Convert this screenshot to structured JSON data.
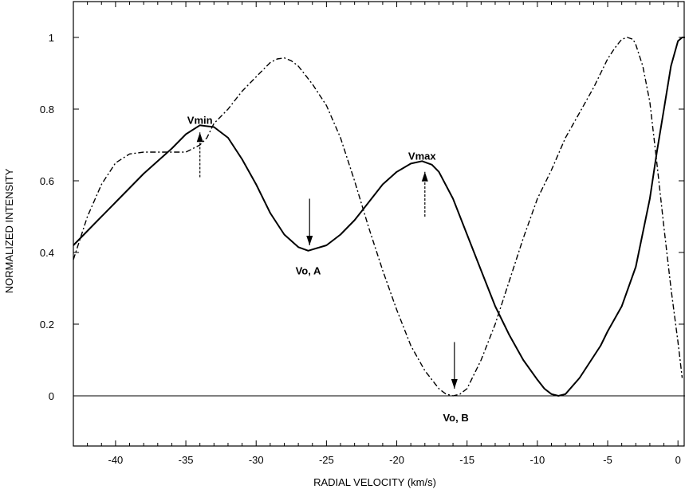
{
  "chart_data": {
    "type": "line",
    "title": "",
    "xlabel": "RADIAL VELOCITY (km/s)",
    "ylabel": "NORMALIZED INTENSITY",
    "xlim": [
      -43,
      0.5
    ],
    "ylim": [
      -0.14,
      1.1
    ],
    "xticks": [
      -40,
      -35,
      -30,
      -25,
      -20,
      -15,
      -10,
      -5,
      0
    ],
    "xtick_labels": [
      "-40",
      "-35",
      "-30",
      "-25",
      "-20",
      "-15",
      "-10",
      "-5",
      "0"
    ],
    "yticks": [
      0,
      0.2,
      0.4,
      0.6,
      0.8,
      1
    ],
    "ytick_labels": [
      "0",
      "0.2",
      "0.4",
      "0.6",
      "0.8",
      "1"
    ],
    "grid": false,
    "zero_line": true,
    "series": [
      {
        "style": "solid",
        "x": [
          -43,
          -42,
          -40,
          -38,
          -36,
          -35,
          -34,
          -33,
          -32,
          -31,
          -30,
          -29,
          -28,
          -27,
          -26.3,
          -25,
          -24,
          -23,
          -22,
          -21,
          -20,
          -19,
          -18.2,
          -17.5,
          -17,
          -16,
          -15,
          -14,
          -13,
          -12,
          -11,
          -10,
          -9.5,
          -9,
          -8.5,
          -8,
          -7,
          -6,
          -5.5,
          -5,
          -4,
          -3,
          -2,
          -1.5,
          -1,
          -0.5,
          0,
          0.3,
          0.5
        ],
        "y": [
          0.42,
          0.46,
          0.54,
          0.62,
          0.69,
          0.73,
          0.755,
          0.75,
          0.72,
          0.66,
          0.59,
          0.51,
          0.45,
          0.415,
          0.405,
          0.42,
          0.45,
          0.49,
          0.54,
          0.59,
          0.625,
          0.648,
          0.655,
          0.645,
          0.625,
          0.55,
          0.45,
          0.35,
          0.25,
          0.17,
          0.1,
          0.045,
          0.02,
          0.005,
          0,
          0.005,
          0.05,
          0.11,
          0.14,
          0.18,
          0.25,
          0.36,
          0.55,
          0.68,
          0.8,
          0.92,
          0.99,
          1.0,
          1.0
        ]
      },
      {
        "style": "dash-dot",
        "x": [
          -43,
          -42.5,
          -42,
          -41,
          -40,
          -39,
          -38,
          -37,
          -36,
          -35,
          -34.5,
          -34,
          -33.5,
          -33,
          -32,
          -31,
          -30,
          -29,
          -28.5,
          -28,
          -27.5,
          -27,
          -26,
          -25,
          -24,
          -23,
          -22,
          -21,
          -20,
          -19,
          -18,
          -17,
          -16.5,
          -16,
          -15.5,
          -15,
          -14,
          -13,
          -12,
          -11,
          -10,
          -9,
          -8,
          -7,
          -6,
          -5.5,
          -5,
          -4.5,
          -4,
          -3.6,
          -3.2,
          -3,
          -2.5,
          -2,
          -1.5,
          -1,
          -0.5,
          0,
          0.3
        ],
        "y": [
          0.38,
          0.44,
          0.5,
          0.59,
          0.65,
          0.675,
          0.68,
          0.68,
          0.68,
          0.68,
          0.69,
          0.7,
          0.72,
          0.76,
          0.8,
          0.85,
          0.89,
          0.93,
          0.94,
          0.943,
          0.935,
          0.92,
          0.87,
          0.81,
          0.72,
          0.6,
          0.47,
          0.35,
          0.24,
          0.14,
          0.07,
          0.02,
          0.005,
          0,
          0.005,
          0.02,
          0.1,
          0.2,
          0.32,
          0.44,
          0.55,
          0.63,
          0.72,
          0.79,
          0.86,
          0.9,
          0.94,
          0.97,
          0.995,
          1.0,
          0.995,
          0.98,
          0.92,
          0.82,
          0.65,
          0.47,
          0.3,
          0.15,
          0.05
        ]
      }
    ],
    "annotations": [
      {
        "text": "Vmin",
        "x": -34,
        "y": 0.77
      },
      {
        "text": "Vmax",
        "x": -18.2,
        "y": 0.67
      },
      {
        "text": "Vo, A",
        "x": -26.3,
        "y": 0.35
      },
      {
        "text": "Vo, B",
        "x": -15.8,
        "y": -0.06
      }
    ],
    "arrows": [
      {
        "style": "dashed",
        "direction": "up",
        "x": -34,
        "y_from": 0.61,
        "y_to": 0.735
      },
      {
        "style": "dashed",
        "direction": "up",
        "x": -18,
        "y_from": 0.5,
        "y_to": 0.625
      },
      {
        "style": "solid",
        "direction": "down",
        "x": -26.2,
        "y_from": 0.55,
        "y_to": 0.42
      },
      {
        "style": "solid",
        "direction": "down",
        "x": -15.9,
        "y_from": 0.15,
        "y_to": 0.02
      }
    ]
  }
}
